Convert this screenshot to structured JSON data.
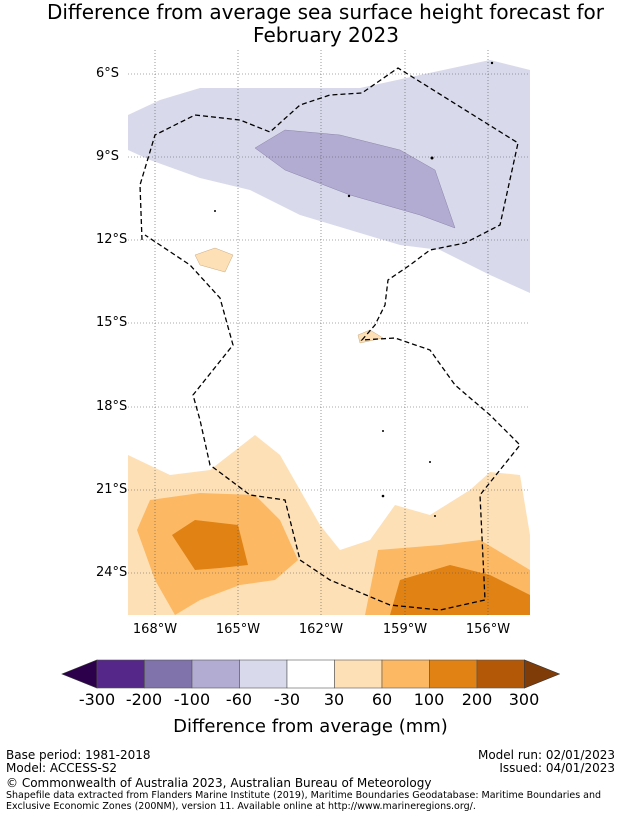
{
  "title_line1": "Difference from average sea surface height forecast for",
  "title_line2": "February 2023",
  "map": {
    "lat_labels": [
      "6°S",
      "9°S",
      "12°S",
      "15°S",
      "18°S",
      "21°S",
      "24°S"
    ],
    "lon_labels": [
      "168°W",
      "165°W",
      "162°W",
      "159°W",
      "156°W"
    ]
  },
  "colorbar": {
    "ticks": [
      "-300",
      "-200",
      "-100",
      "-60",
      "-30",
      "30",
      "60",
      "100",
      "200",
      "300"
    ],
    "colors": [
      "#2d004b",
      "#542788",
      "#8073ac",
      "#b2abd2",
      "#d8daeb",
      "#ffffff",
      "#fee0b6",
      "#fdb863",
      "#e08214",
      "#b35806",
      "#7f3b08"
    ],
    "label": "Difference from average (mm)"
  },
  "footer": {
    "base_period": "Base period: 1981-2018",
    "model": "Model: ACCESS-S2",
    "model_run": "Model run: 02/01/2023",
    "issued": "Issued: 04/01/2023",
    "copyright": "© Commonwealth of Australia 2023, Australian Bureau of Meteorology",
    "source_line1": "Shapefile data extracted from Flanders Marine Institute (2019), Maritime Boundaries Geodatabase: Maritime Boundaries and",
    "source_line2": "Exclusive Economic Zones (200NM), version 11. Available online at http://www.marineregions.org/."
  }
}
